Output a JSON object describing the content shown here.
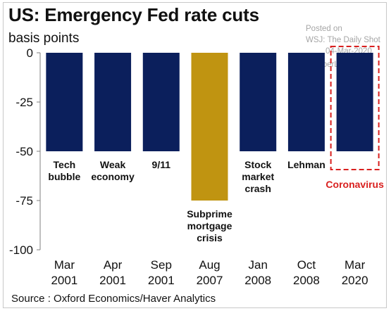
{
  "header": {
    "title": "US: Emergency Fed rate cuts",
    "unit_label": "basis points"
  },
  "watermark": {
    "posted_on": "Posted on",
    "source_line": "WSJ: The Daily Shot",
    "date": "04-Mar-2020",
    "handle": "@SoberLook"
  },
  "footer": {
    "source": "Source : Oxford Economics/Haver Analytics"
  },
  "colors": {
    "navy": "#0b1f5c",
    "gold": "#c09411",
    "highlight_red": "#d9201f"
  },
  "chart_data": {
    "type": "bar",
    "title": "US: Emergency Fed rate cuts",
    "ylabel": "basis points",
    "ylim": [
      -100,
      0
    ],
    "yticks": [
      0,
      -25,
      -50,
      -75,
      -100
    ],
    "grid": false,
    "categories": [
      [
        "Mar",
        "2001"
      ],
      [
        "Apr",
        "2001"
      ],
      [
        "Sep",
        "2001"
      ],
      [
        "Aug",
        "2007"
      ],
      [
        "Jan",
        "2008"
      ],
      [
        "Oct",
        "2008"
      ],
      [
        "Mar",
        "2020"
      ]
    ],
    "values": [
      -50,
      -50,
      -50,
      -75,
      -50,
      -50,
      -50
    ],
    "bar_colors": [
      "navy",
      "navy",
      "navy",
      "gold",
      "navy",
      "navy",
      "navy"
    ],
    "annotations": [
      [
        "Tech",
        "bubble"
      ],
      [
        "Weak",
        "economy"
      ],
      [
        "9/11"
      ],
      [
        "Subprime",
        "mortgage",
        "crisis"
      ],
      [
        "Stock",
        "market",
        "crash"
      ],
      [
        "Lehman"
      ],
      [
        "Coronavirus"
      ]
    ],
    "highlight_index": 6
  }
}
